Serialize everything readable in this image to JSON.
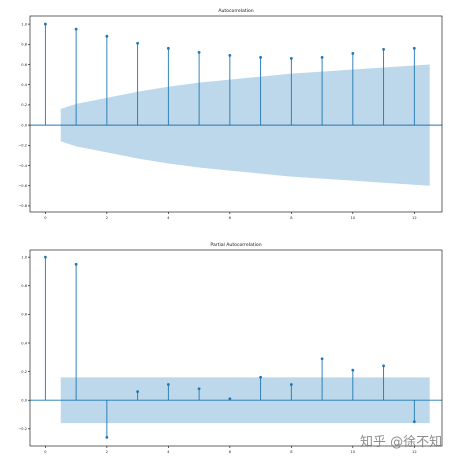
{
  "watermark": "知乎 @徐不知",
  "colors": {
    "stem": "#1f77b4",
    "band": "#a6cbe3",
    "baseline": "#1f77b4"
  },
  "chart_data": [
    {
      "type": "stem",
      "title": "Autocorrelation",
      "xlabel": "",
      "ylabel": "",
      "x": [
        0,
        1,
        2,
        3,
        4,
        5,
        6,
        7,
        8,
        9,
        10,
        11,
        12
      ],
      "values": [
        1.0,
        0.95,
        0.88,
        0.81,
        0.76,
        0.72,
        0.69,
        0.67,
        0.66,
        0.67,
        0.71,
        0.75,
        0.76
      ],
      "confidence_band": {
        "x": [
          0.5,
          1,
          2,
          3,
          4,
          5,
          6,
          7,
          8,
          9,
          10,
          11,
          12,
          12.5
        ],
        "upper": [
          0.16,
          0.21,
          0.27,
          0.33,
          0.38,
          0.42,
          0.45,
          0.48,
          0.51,
          0.53,
          0.55,
          0.57,
          0.59,
          0.6
        ],
        "lower": [
          -0.16,
          -0.21,
          -0.27,
          -0.33,
          -0.38,
          -0.42,
          -0.45,
          -0.48,
          -0.51,
          -0.53,
          -0.55,
          -0.57,
          -0.59,
          -0.6
        ]
      },
      "xlim": [
        -0.5,
        12.9
      ],
      "ylim": [
        -0.86,
        1.08
      ],
      "xticks": [
        0,
        2,
        4,
        6,
        8,
        10,
        12
      ],
      "xtick_labels": [
        "0",
        "2",
        "4",
        "6",
        "8",
        "10",
        "12"
      ],
      "yticks": [
        1.0,
        0.8,
        0.6,
        0.4,
        0.2,
        0.0,
        -0.2,
        -0.4,
        -0.6,
        -0.8
      ],
      "ytick_labels": [
        "1.0",
        "0.8",
        "0.6",
        "0.4",
        "0.2",
        "0.0",
        "−0.2",
        "−0.4",
        "−0.6",
        "−0.8"
      ],
      "grid": false
    },
    {
      "type": "stem",
      "title": "Partial Autocorrelation",
      "xlabel": "",
      "ylabel": "",
      "x": [
        0,
        1,
        2,
        3,
        4,
        5,
        6,
        7,
        8,
        9,
        10,
        11,
        12
      ],
      "values": [
        1.0,
        0.95,
        -0.26,
        0.06,
        0.11,
        0.08,
        0.01,
        0.16,
        0.11,
        0.29,
        0.21,
        0.24,
        -0.15
      ],
      "confidence_band": {
        "x": [
          0.5,
          12.5
        ],
        "upper": [
          0.16,
          0.16
        ],
        "lower": [
          -0.16,
          -0.16
        ]
      },
      "xlim": [
        -0.5,
        12.9
      ],
      "ylim": [
        -0.32,
        1.05
      ],
      "xticks": [
        0,
        2,
        4,
        6,
        8,
        10,
        12
      ],
      "xtick_labels": [
        "0",
        "2",
        "4",
        "6",
        "8",
        "10",
        "12"
      ],
      "yticks": [
        1.0,
        0.8,
        0.6,
        0.4,
        0.2,
        0.0,
        -0.2
      ],
      "ytick_labels": [
        "1.0",
        "0.8",
        "0.6",
        "0.4",
        "0.2",
        "0.0",
        "−0.2"
      ],
      "grid": false
    }
  ]
}
